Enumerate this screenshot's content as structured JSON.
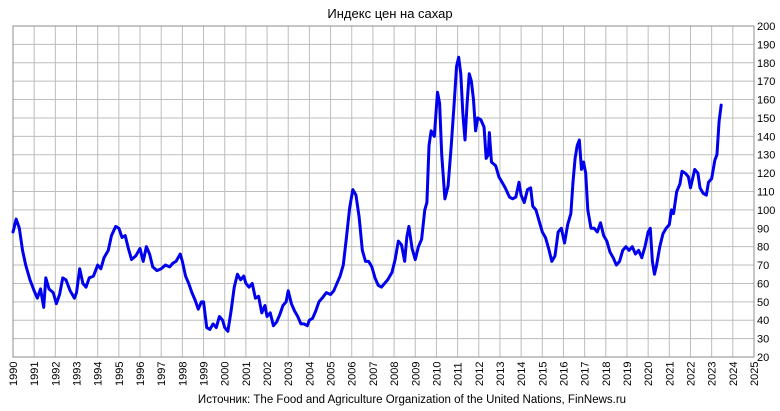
{
  "chart_data": {
    "type": "line",
    "title": "Индекс цен на сахар",
    "source": "Источник: The Food and Agriculture Organization of the United Nations, FinNews.ru",
    "xlim": [
      1990,
      2025
    ],
    "ylim": [
      20,
      200
    ],
    "x_ticks": [
      "1990",
      "1991",
      "1992",
      "1993",
      "1994",
      "1995",
      "1996",
      "1997",
      "1998",
      "1999",
      "2000",
      "2001",
      "2002",
      "2003",
      "2004",
      "2005",
      "2006",
      "2007",
      "2008",
      "2009",
      "2010",
      "2011",
      "2012",
      "2013",
      "2014",
      "2015",
      "2016",
      "2017",
      "2018",
      "2019",
      "2020",
      "2021",
      "2022",
      "2023",
      "2024",
      "2025"
    ],
    "y_ticks": [
      "20",
      "30",
      "40",
      "50",
      "60",
      "70",
      "80",
      "90",
      "100",
      "110",
      "120",
      "130",
      "140",
      "150",
      "160",
      "170",
      "180",
      "190",
      "200"
    ],
    "grid": "vertical and horizontal",
    "line_color": "#0000ee",
    "series": [
      {
        "name": "",
        "points": [
          [
            1990.0,
            88
          ],
          [
            1990.15,
            95
          ],
          [
            1990.3,
            90
          ],
          [
            1990.45,
            78
          ],
          [
            1990.6,
            70
          ],
          [
            1990.8,
            62
          ],
          [
            1991.0,
            56
          ],
          [
            1991.15,
            52
          ],
          [
            1991.3,
            57
          ],
          [
            1991.45,
            47
          ],
          [
            1991.55,
            63
          ],
          [
            1991.7,
            57
          ],
          [
            1991.9,
            55
          ],
          [
            1992.05,
            49
          ],
          [
            1992.2,
            54
          ],
          [
            1992.35,
            63
          ],
          [
            1992.5,
            62
          ],
          [
            1992.7,
            56
          ],
          [
            1992.9,
            52
          ],
          [
            1993.0,
            55
          ],
          [
            1993.15,
            68
          ],
          [
            1993.3,
            60
          ],
          [
            1993.45,
            58
          ],
          [
            1993.6,
            63
          ],
          [
            1993.8,
            64
          ],
          [
            1994.0,
            70
          ],
          [
            1994.15,
            68
          ],
          [
            1994.3,
            74
          ],
          [
            1994.5,
            78
          ],
          [
            1994.65,
            86
          ],
          [
            1994.85,
            91
          ],
          [
            1995.0,
            90
          ],
          [
            1995.15,
            85
          ],
          [
            1995.3,
            86
          ],
          [
            1995.45,
            79
          ],
          [
            1995.6,
            73
          ],
          [
            1995.8,
            75
          ],
          [
            1996.0,
            79
          ],
          [
            1996.15,
            72
          ],
          [
            1996.3,
            80
          ],
          [
            1996.45,
            76
          ],
          [
            1996.6,
            69
          ],
          [
            1996.8,
            67
          ],
          [
            1997.0,
            68
          ],
          [
            1997.2,
            70
          ],
          [
            1997.4,
            69
          ],
          [
            1997.55,
            71
          ],
          [
            1997.7,
            72
          ],
          [
            1997.9,
            76
          ],
          [
            1998.0,
            72
          ],
          [
            1998.15,
            64
          ],
          [
            1998.3,
            60
          ],
          [
            1998.45,
            55
          ],
          [
            1998.6,
            51
          ],
          [
            1998.75,
            46
          ],
          [
            1998.9,
            50
          ],
          [
            1999.0,
            50
          ],
          [
            1999.15,
            36
          ],
          [
            1999.3,
            35
          ],
          [
            1999.45,
            38
          ],
          [
            1999.6,
            36
          ],
          [
            1999.75,
            42
          ],
          [
            1999.9,
            40
          ],
          [
            2000.0,
            36
          ],
          [
            2000.15,
            34
          ],
          [
            2000.3,
            45
          ],
          [
            2000.45,
            58
          ],
          [
            2000.6,
            65
          ],
          [
            2000.75,
            62
          ],
          [
            2000.9,
            64
          ],
          [
            2001.0,
            60
          ],
          [
            2001.15,
            58
          ],
          [
            2001.3,
            60
          ],
          [
            2001.45,
            52
          ],
          [
            2001.6,
            53
          ],
          [
            2001.75,
            44
          ],
          [
            2001.9,
            48
          ],
          [
            2002.0,
            42
          ],
          [
            2002.15,
            44
          ],
          [
            2002.3,
            37
          ],
          [
            2002.45,
            39
          ],
          [
            2002.6,
            43
          ],
          [
            2002.75,
            48
          ],
          [
            2002.9,
            50
          ],
          [
            2003.0,
            56
          ],
          [
            2003.15,
            49
          ],
          [
            2003.3,
            45
          ],
          [
            2003.45,
            42
          ],
          [
            2003.6,
            38
          ],
          [
            2003.75,
            38
          ],
          [
            2003.9,
            37
          ],
          [
            2004.0,
            40
          ],
          [
            2004.15,
            41
          ],
          [
            2004.3,
            45
          ],
          [
            2004.45,
            50
          ],
          [
            2004.6,
            52
          ],
          [
            2004.8,
            55
          ],
          [
            2005.0,
            54
          ],
          [
            2005.15,
            56
          ],
          [
            2005.3,
            60
          ],
          [
            2005.45,
            64
          ],
          [
            2005.6,
            70
          ],
          [
            2005.75,
            85
          ],
          [
            2005.9,
            101
          ],
          [
            2006.05,
            111
          ],
          [
            2006.2,
            108
          ],
          [
            2006.35,
            96
          ],
          [
            2006.5,
            78
          ],
          [
            2006.65,
            72
          ],
          [
            2006.8,
            72
          ],
          [
            2006.95,
            69
          ],
          [
            2007.1,
            63
          ],
          [
            2007.25,
            59
          ],
          [
            2007.4,
            58
          ],
          [
            2007.55,
            60
          ],
          [
            2007.7,
            62
          ],
          [
            2007.9,
            66
          ],
          [
            2008.05,
            73
          ],
          [
            2008.2,
            83
          ],
          [
            2008.35,
            81
          ],
          [
            2008.5,
            72
          ],
          [
            2008.6,
            85
          ],
          [
            2008.7,
            91
          ],
          [
            2008.85,
            79
          ],
          [
            2009.0,
            73
          ],
          [
            2009.15,
            80
          ],
          [
            2009.3,
            84
          ],
          [
            2009.45,
            100
          ],
          [
            2009.55,
            104
          ],
          [
            2009.65,
            135
          ],
          [
            2009.75,
            143
          ],
          [
            2009.9,
            140
          ],
          [
            2010.05,
            164
          ],
          [
            2010.15,
            158
          ],
          [
            2010.25,
            130
          ],
          [
            2010.4,
            106
          ],
          [
            2010.55,
            113
          ],
          [
            2010.7,
            135
          ],
          [
            2010.85,
            160
          ],
          [
            2010.95,
            178
          ],
          [
            2011.05,
            183
          ],
          [
            2011.15,
            174
          ],
          [
            2011.25,
            152
          ],
          [
            2011.35,
            138
          ],
          [
            2011.45,
            158
          ],
          [
            2011.55,
            174
          ],
          [
            2011.65,
            170
          ],
          [
            2011.75,
            160
          ],
          [
            2011.85,
            143
          ],
          [
            2011.95,
            150
          ],
          [
            2012.1,
            149
          ],
          [
            2012.25,
            145
          ],
          [
            2012.35,
            128
          ],
          [
            2012.45,
            130
          ],
          [
            2012.5,
            142
          ],
          [
            2012.6,
            126
          ],
          [
            2012.8,
            124
          ],
          [
            2012.95,
            118
          ],
          [
            2013.1,
            115
          ],
          [
            2013.25,
            112
          ],
          [
            2013.45,
            107
          ],
          [
            2013.6,
            106
          ],
          [
            2013.75,
            107
          ],
          [
            2013.9,
            115
          ],
          [
            2014.0,
            108
          ],
          [
            2014.15,
            104
          ],
          [
            2014.3,
            111
          ],
          [
            2014.45,
            112
          ],
          [
            2014.55,
            102
          ],
          [
            2014.7,
            100
          ],
          [
            2014.85,
            94
          ],
          [
            2015.0,
            88
          ],
          [
            2015.15,
            85
          ],
          [
            2015.3,
            79
          ],
          [
            2015.45,
            72
          ],
          [
            2015.6,
            75
          ],
          [
            2015.75,
            88
          ],
          [
            2015.9,
            90
          ],
          [
            2016.05,
            82
          ],
          [
            2016.2,
            92
          ],
          [
            2016.35,
            98
          ],
          [
            2016.45,
            115
          ],
          [
            2016.55,
            128
          ],
          [
            2016.65,
            135
          ],
          [
            2016.75,
            138
          ],
          [
            2016.85,
            122
          ],
          [
            2016.95,
            126
          ],
          [
            2017.05,
            120
          ],
          [
            2017.15,
            100
          ],
          [
            2017.3,
            90
          ],
          [
            2017.45,
            90
          ],
          [
            2017.6,
            88
          ],
          [
            2017.75,
            93
          ],
          [
            2017.9,
            86
          ],
          [
            2018.05,
            83
          ],
          [
            2018.2,
            77
          ],
          [
            2018.35,
            74
          ],
          [
            2018.5,
            70
          ],
          [
            2018.65,
            72
          ],
          [
            2018.8,
            78
          ],
          [
            2018.95,
            80
          ],
          [
            2019.1,
            78
          ],
          [
            2019.25,
            80
          ],
          [
            2019.4,
            76
          ],
          [
            2019.55,
            78
          ],
          [
            2019.7,
            74
          ],
          [
            2019.85,
            80
          ],
          [
            2020.0,
            88
          ],
          [
            2020.1,
            90
          ],
          [
            2020.2,
            72
          ],
          [
            2020.3,
            65
          ],
          [
            2020.4,
            70
          ],
          [
            2020.55,
            80
          ],
          [
            2020.7,
            87
          ],
          [
            2020.85,
            90
          ],
          [
            2021.0,
            92
          ],
          [
            2021.1,
            100
          ],
          [
            2021.2,
            98
          ],
          [
            2021.35,
            110
          ],
          [
            2021.5,
            114
          ],
          [
            2021.6,
            121
          ],
          [
            2021.75,
            120
          ],
          [
            2021.9,
            118
          ],
          [
            2022.0,
            112
          ],
          [
            2022.1,
            117
          ],
          [
            2022.2,
            122
          ],
          [
            2022.35,
            120
          ],
          [
            2022.45,
            112
          ],
          [
            2022.6,
            109
          ],
          [
            2022.75,
            108
          ],
          [
            2022.85,
            115
          ],
          [
            2023.0,
            117
          ],
          [
            2023.15,
            127
          ],
          [
            2023.25,
            130
          ],
          [
            2023.35,
            148
          ],
          [
            2023.45,
            157
          ]
        ]
      }
    ]
  }
}
